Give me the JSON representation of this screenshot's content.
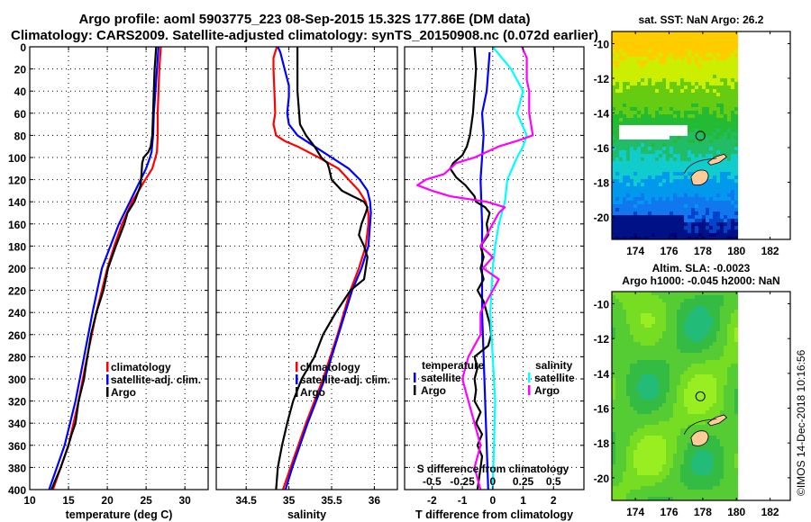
{
  "header": {
    "title_line1": "Argo profile: aoml 5903775_223 08-Sep-2015 15.32S 177.86E (DM data)",
    "title_line2": "Climatology: CARS2009. Satellite-adjusted climatology: synTS_20150908.nc (0.072d earlier)"
  },
  "colors": {
    "climatology": "#ff0000",
    "satellite": "#0000ff",
    "argo": "#000000",
    "sal_satellite": "#00ffff",
    "sal_argo": "#ff00ff",
    "land": "#ffcc99"
  },
  "chart_data": [
    {
      "id": "temperature",
      "type": "line",
      "xlabel": "temperature (deg C)",
      "ylabel": "",
      "xlim": [
        10,
        33
      ],
      "ylim": [
        400,
        0
      ],
      "xticks": [
        10,
        15,
        20,
        25,
        30
      ],
      "yticks": [
        0,
        20,
        40,
        60,
        80,
        100,
        120,
        140,
        160,
        180,
        200,
        220,
        240,
        260,
        280,
        300,
        320,
        340,
        360,
        380,
        400
      ],
      "grid": true,
      "legend": {
        "placement": "lower-right",
        "entries": [
          "climatology",
          "satellite-adj. clim.",
          "Argo"
        ]
      },
      "series": [
        {
          "name": "climatology",
          "color": "#ff0000",
          "depth": [
            0,
            20,
            40,
            60,
            80,
            95,
            100,
            110,
            120,
            140,
            160,
            180,
            200,
            240,
            280,
            320,
            360,
            400
          ],
          "values": [
            26.9,
            26.7,
            26.6,
            26.5,
            26.5,
            26.4,
            26.2,
            25.8,
            24.9,
            23.2,
            21.9,
            20.9,
            20.0,
            18.6,
            17.4,
            16.3,
            15.0,
            13.0
          ]
        },
        {
          "name": "satellite-adj. clim.",
          "color": "#0000ff",
          "depth": [
            0,
            20,
            40,
            60,
            80,
            95,
            100,
            110,
            120,
            140,
            160,
            180,
            200,
            240,
            280,
            320,
            360,
            400
          ],
          "values": [
            26.6,
            26.4,
            26.2,
            26.0,
            25.9,
            25.7,
            25.5,
            25.0,
            24.3,
            22.9,
            21.5,
            20.4,
            19.3,
            18.1,
            17.0,
            15.9,
            14.5,
            12.5
          ]
        },
        {
          "name": "Argo",
          "color": "#000000",
          "depth": [
            0,
            10,
            20,
            40,
            60,
            80,
            90,
            95,
            100,
            105,
            115,
            125,
            140,
            150,
            160,
            180,
            200,
            220,
            240,
            260,
            290,
            300,
            320,
            340,
            350,
            360,
            380,
            400
          ],
          "values": [
            26.3,
            26.2,
            26.1,
            26.0,
            25.9,
            25.8,
            25.6,
            25.3,
            24.7,
            24.5,
            24.4,
            24.3,
            23.5,
            22.6,
            22.2,
            21.1,
            20.1,
            19.5,
            18.6,
            17.9,
            17.2,
            17.0,
            16.3,
            15.9,
            15.4,
            15.0,
            14.0,
            12.8
          ]
        }
      ]
    },
    {
      "id": "salinity",
      "type": "line",
      "xlabel": "salinity",
      "ylabel": "",
      "xlim": [
        34.15,
        36.27
      ],
      "ylim": [
        400,
        0
      ],
      "xticks": [
        34.5,
        35,
        35.5,
        36
      ],
      "xticklabels": [
        "34.5",
        "35",
        "35.5",
        "36"
      ],
      "grid": true,
      "legend": {
        "placement": "lower-right",
        "entries": [
          "climatology",
          "satellite-adj. clim.",
          "Argo"
        ]
      },
      "series": [
        {
          "name": "climatology",
          "color": "#ff0000",
          "depth": [
            0,
            10,
            20,
            40,
            60,
            70,
            80,
            85,
            90,
            100,
            110,
            120,
            130,
            140,
            150,
            160,
            180,
            200,
            220,
            260,
            300,
            340,
            380,
            400
          ],
          "values": [
            34.86,
            34.82,
            34.82,
            34.83,
            34.84,
            34.82,
            34.85,
            34.95,
            35.1,
            35.35,
            35.58,
            35.7,
            35.82,
            35.9,
            35.93,
            35.93,
            35.9,
            35.82,
            35.72,
            35.57,
            35.4,
            35.2,
            35.02,
            34.93
          ]
        },
        {
          "name": "satellite-adj. clim.",
          "color": "#0000ff",
          "depth": [
            0,
            5,
            20,
            35,
            45,
            60,
            70,
            80,
            90,
            100,
            110,
            120,
            130,
            140,
            150,
            160,
            180,
            200,
            220,
            260,
            300,
            340,
            380,
            400
          ],
          "values": [
            34.87,
            34.9,
            34.95,
            35.0,
            35.0,
            34.98,
            35.0,
            35.1,
            35.3,
            35.5,
            35.7,
            35.83,
            35.92,
            35.95,
            35.96,
            35.95,
            35.93,
            35.85,
            35.74,
            35.58,
            35.42,
            35.22,
            35.04,
            34.96
          ]
        },
        {
          "name": "Argo",
          "color": "#000000",
          "depth": [
            0,
            20,
            40,
            60,
            70,
            80,
            90,
            100,
            105,
            110,
            120,
            130,
            135,
            140,
            145,
            150,
            160,
            170,
            180,
            190,
            200,
            210,
            220,
            240,
            260,
            280,
            300,
            320,
            340,
            360,
            380,
            400
          ],
          "values": [
            35.1,
            35.1,
            35.1,
            35.12,
            35.13,
            35.2,
            35.3,
            35.38,
            35.45,
            35.47,
            35.5,
            35.62,
            35.75,
            35.88,
            35.92,
            35.9,
            35.85,
            35.82,
            35.88,
            35.92,
            35.9,
            35.88,
            35.72,
            35.55,
            35.4,
            35.3,
            35.15,
            35.05,
            34.98,
            34.92,
            34.87,
            34.85
          ]
        }
      ]
    },
    {
      "id": "difference",
      "type": "line",
      "xlabel": "T difference from climatology",
      "secondary_xlabel": "S difference from climatology",
      "xlim": [
        -2.9,
        3.0
      ],
      "ylim": [
        400,
        0
      ],
      "xticks": [
        -2,
        -1,
        0,
        1,
        2
      ],
      "xticklabels": [
        "-2",
        "-1",
        "0",
        "1",
        "2"
      ],
      "secondary_xticks": [
        -0.5,
        -0.25,
        0,
        0.25,
        0.5
      ],
      "secondary_xticklabels": [
        "-0.5",
        "-0.25",
        "0",
        "0.25",
        "0.5"
      ],
      "secondary_xlim": [
        -0.725,
        0.75
      ],
      "grid": true,
      "legend": {
        "temperature": {
          "title": "temperature",
          "placement": "lower-left",
          "entries": [
            "satellite",
            "Argo"
          ]
        },
        "salinity": {
          "title": "salinity",
          "placement": "lower-right",
          "entries": [
            "satellite",
            "Argo"
          ]
        }
      },
      "series": [
        {
          "name": "temperature satellite",
          "axis": "T",
          "color": "#0000ff",
          "depth": [
            5,
            40,
            60,
            80,
            120,
            160,
            200,
            240,
            280,
            320,
            360,
            400
          ],
          "values": [
            -0.1,
            -0.2,
            -0.35,
            -0.3,
            -0.4,
            -0.35,
            -0.35,
            -0.35,
            -0.3,
            -0.25,
            -0.2,
            -0.15
          ]
        },
        {
          "name": "temperature Argo",
          "axis": "T",
          "color": "#000000",
          "depth": [
            0,
            20,
            40,
            60,
            80,
            90,
            98,
            105,
            110,
            118,
            125,
            135,
            140,
            145,
            150,
            160,
            170,
            180,
            190,
            200,
            210,
            220,
            230,
            240,
            250,
            260,
            270,
            280,
            290,
            300,
            310,
            320,
            330,
            340,
            350,
            360,
            370,
            380,
            390,
            400
          ],
          "values": [
            -0.6,
            -0.55,
            -0.6,
            -0.65,
            -0.75,
            -0.85,
            -1.0,
            -1.3,
            -1.4,
            -1.2,
            -0.9,
            -0.6,
            -0.55,
            -0.25,
            -0.1,
            -0.2,
            -0.15,
            -0.4,
            -0.3,
            -0.4,
            -0.3,
            -0.5,
            -0.3,
            -0.2,
            -0.1,
            -0.05,
            -0.15,
            -0.6,
            -0.5,
            -0.6,
            -0.55,
            -0.6,
            -0.4,
            -0.55,
            -0.35,
            -0.5,
            -0.35,
            -0.4,
            -0.45,
            -0.5
          ]
        },
        {
          "name": "salinity satellite",
          "axis": "S",
          "color": "#00ffff",
          "depth": [
            0,
            20,
            40,
            60,
            80,
            90,
            100,
            120,
            140,
            160,
            180,
            200,
            240,
            280,
            320,
            360,
            400
          ],
          "values": [
            0.0,
            0.15,
            0.25,
            0.2,
            0.28,
            0.25,
            0.2,
            0.12,
            0.1,
            0.05,
            0.02,
            0.0,
            -0.02,
            0.0,
            0.02,
            0.01,
            0.0
          ]
        },
        {
          "name": "salinity Argo",
          "axis": "S",
          "color": "#ff00ff",
          "depth": [
            0,
            10,
            30,
            40,
            60,
            80,
            85,
            90,
            100,
            105,
            110,
            115,
            120,
            125,
            130,
            135,
            140,
            145,
            150,
            160,
            170,
            180,
            190,
            200,
            210,
            220,
            230,
            240,
            260,
            280,
            300,
            320,
            340,
            360,
            380,
            400
          ],
          "values": [
            0.24,
            0.28,
            0.28,
            0.3,
            0.3,
            0.33,
            0.2,
            0.05,
            -0.15,
            -0.3,
            -0.35,
            -0.4,
            -0.55,
            -0.62,
            -0.5,
            -0.35,
            -0.05,
            0.1,
            0.05,
            0.0,
            -0.05,
            -0.1,
            0.0,
            -0.08,
            0.05,
            0.0,
            -0.05,
            -0.1,
            -0.1,
            -0.2,
            -0.25,
            -0.2,
            -0.15,
            -0.1,
            -0.15,
            -0.1
          ]
        }
      ]
    },
    {
      "id": "sst-map",
      "type": "heatmap",
      "title": "sat. SST: NaN Argo: 26.2",
      "xlim": [
        172.6,
        183.2
      ],
      "ylim": [
        -21.3,
        -9.3
      ],
      "xticks": [
        174,
        176,
        178,
        180,
        182
      ],
      "yticks": [
        -10,
        -12,
        -14,
        -16,
        -18,
        -20
      ],
      "data_lon_max": 180.1,
      "argo_position": {
        "lon": 177.86,
        "lat": -15.32
      },
      "color_scale": "blue-cyan-green-yellow-orange"
    },
    {
      "id": "sla-map",
      "type": "heatmap",
      "title_line1": "Altim. SLA: -0.0023",
      "title_line2": "Argo h1000: -0.045 h2000: NaN",
      "xlim": [
        172.6,
        183.2
      ],
      "ylim": [
        -21.3,
        -9.3
      ],
      "xticks": [
        174,
        176,
        178,
        180,
        182
      ],
      "yticks": [
        -10,
        -12,
        -14,
        -16,
        -18,
        -20
      ],
      "data_lon_max": 180.1,
      "argo_position": {
        "lon": 177.86,
        "lat": -15.32
      },
      "color_scale": "teal-green-yellowgreen"
    }
  ],
  "footer": {
    "stamp": "©IMOS 14-Dec-2018 10:16:56"
  }
}
